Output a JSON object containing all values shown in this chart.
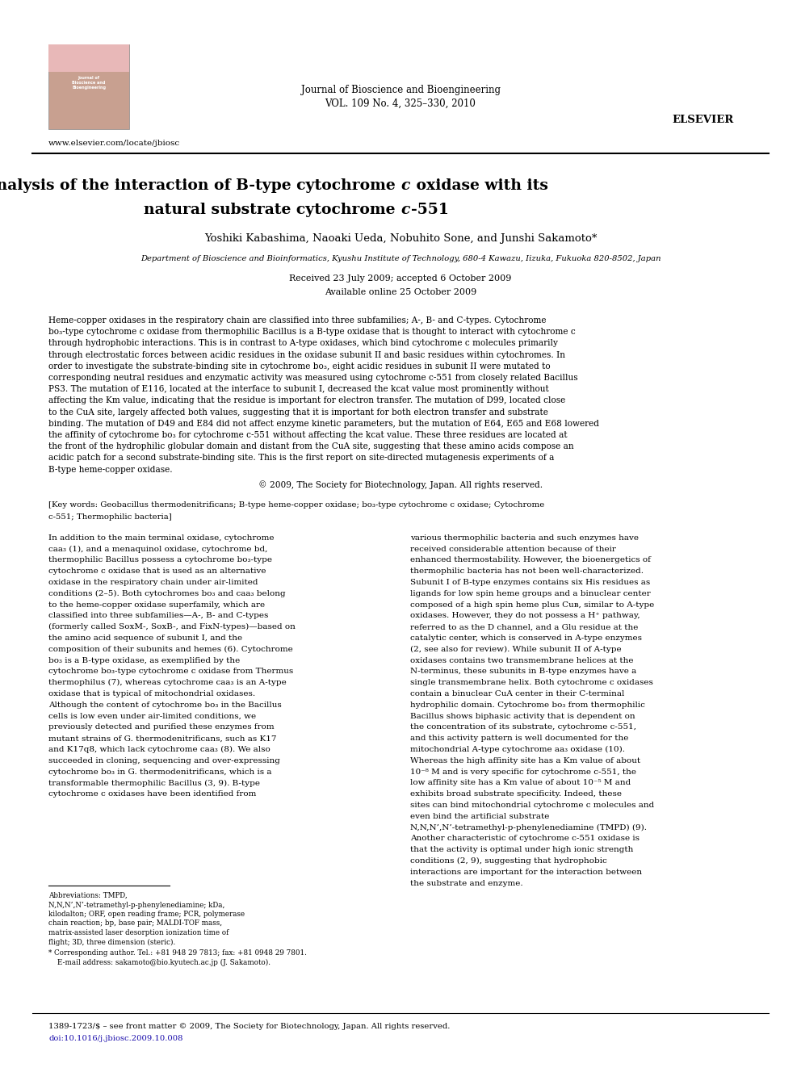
{
  "page_width": 9.92,
  "page_height": 13.23,
  "bg_color": "#ffffff",
  "journal_name": "Journal of Bioscience and Bioengineering",
  "journal_vol": "VOL. 109 No. 4, 325–330, 2010",
  "website": "www.elsevier.com/locate/jbiosc",
  "title_line1_pre": "Mutation analysis of the interaction of B-type cytochrome ",
  "title_line1_c": "c",
  "title_line1_post": " oxidase with its",
  "title_line2_pre": "natural substrate cytochrome ",
  "title_line2_c": "c",
  "title_line2_post": "-551",
  "authors": "Yoshiki Kabashima, Naoaki Ueda, Nobuhito Sone, and Junshi Sakamoto*",
  "affiliation": "Department of Bioscience and Bioinformatics, Kyushu Institute of Technology, 680-4 Kawazu, Iizuka, Fukuoka 820-8502, Japan",
  "received": "Received 23 July 2009; accepted 6 October 2009",
  "available": "Available online 25 October 2009",
  "abstract_text": "Heme-copper oxidases in the respiratory chain are classified into three subfamilies; A-, B- and C-types. Cytochrome bo₃-type cytochrome c oxidase from thermophilic Bacillus is a B-type oxidase that is thought to interact with cytochrome c through hydrophobic interactions. This is in contrast to A-type oxidases, which bind cytochrome c molecules primarily through electrostatic forces between acidic residues in the oxidase subunit II and basic residues within cytochromes. In order to investigate the substrate-binding site in cytochrome bo₃, eight acidic residues in subunit II were mutated to corresponding neutral residues and enzymatic activity was measured using cytochrome c-551 from closely related Bacillus PS3. The mutation of E116, located at the interface to subunit I, decreased the kcat value most prominently without affecting the Km value, indicating that the residue is important for electron transfer. The mutation of D99, located close to the CuA site, largely affected both values, suggesting that it is important for both electron transfer and substrate binding. The mutation of D49 and E84 did not affect enzyme kinetic parameters, but the mutation of E64, E65 and E68 lowered the affinity of cytochrome bo₃ for cytochrome c-551 without affecting the kcat value. These three residues are located at the front of the hydrophilic globular domain and distant from the CuA site, suggesting that these amino acids compose an acidic patch for a second substrate-binding site. This is the first report on site-directed mutagenesis experiments of a B-type heme-copper oxidase.",
  "copyright": "© 2009, The Society for Biotechnology, Japan. All rights reserved.",
  "keywords": "[Key words: Geobacillus thermodenitrificans; B-type heme-copper oxidase; bo₃-type cytochrome c oxidase; Cytochrome c-551; Thermophilic bacteria]",
  "body_col1": "In addition to the main terminal oxidase, cytochrome caa₃ (1), and a menaquinol oxidase, cytochrome bd, thermophilic Bacillus possess a cytochrome bo₃-type cytochrome c oxidase that is used as an alternative oxidase in the respiratory chain under air-limited conditions (2–5). Both cytochromes bo₃ and caa₃ belong to the heme-copper oxidase superfamily, which are classified into three subfamilies—A-, B- and C-types (formerly called SoxM-, SoxB-, and FixN-types)—based on the amino acid sequence of subunit I, and the composition of their subunits and hemes (6). Cytochrome bo₃ is a B-type oxidase, as exemplified by the cytochrome bo₃-type cytochrome c oxidase from Thermus thermophilus (7), whereas cytochrome caa₃ is an A-type oxidase that is typical of mitochondrial oxidases. Although the content of cytochrome bo₃ in the Bacillus cells is low even under air-limited conditions, we previously detected and purified these enzymes from mutant strains of G. thermodenitrificans, such as K17 and K17q8, which lack cytochrome caa₃ (8). We also succeeded in cloning, sequencing and over-expressing cytochrome bo₃ in G. thermodenitrificans, which is a transformable thermophilic Bacillus (3, 9). B-type cytochrome c oxidases have been identified from",
  "body_col2": "various thermophilic bacteria and such enzymes have received considerable attention because of their enhanced thermostability. However, the bioenergetics of thermophilic bacteria has not been well-characterized.\n    Subunit I of B-type enzymes contains six His residues as ligands for low spin heme groups and a binuclear center composed of a high spin heme plus Cuʙ, similar to A-type oxidases. However, they do not possess a H⁺ pathway, referred to as the D channel, and a Glu residue at the catalytic center, which is conserved in A-type enzymes (2, see also for review). While subunit II of A-type oxidases contains two transmembrane helices at the N-terminus, these subunits in B-type enzymes have a single transmembrane helix. Both cytochrome c oxidases contain a binuclear CuA center in their C-terminal hydrophilic domain. Cytochrome bo₃ from thermophilic Bacillus shows biphasic activity that is dependent on the concentration of its substrate, cytochrome c-551, and this activity pattern is well documented for the mitochondrial A-type cytochrome aa₃ oxidase (10). Whereas the high affinity site has a Km value of about 10⁻⁸ M and is very specific for cytochrome c-551, the low affinity site has a Km value of about 10⁻⁵ M and exhibits broad substrate specificity. Indeed, these sites can bind mitochondrial cytochrome c molecules and even bind the artificial substrate N,N,N’,N’-tetramethyl-p-phenylenediamine (TMPD) (9). Another characteristic of cytochrome c-551 oxidase is that the activity is optimal under high ionic strength conditions (2, 9), suggesting that hydrophobic interactions are important for the interaction between the substrate and enzyme.",
  "footnote1": "Abbreviations: TMPD, N,N,N’,N’-tetramethyl-p-phenylenediamine; kDa, kilodalton; ORF, open reading frame; PCR, polymerase chain reaction; bp, base pair; MALDI-TOF mass, matrix-assisted laser desorption ionization time of flight; 3D, three dimension (steric).",
  "footnote2": "* Corresponding author. Tel.: +81 948 29 7813; fax: +81 0948 29 7801.",
  "footnote3": "    E-mail address: sakamoto@bio.kyutech.ac.jp (J. Sakamoto).",
  "bottom_line1": "1389-1723/$ – see front matter © 2009, The Society for Biotechnology, Japan. All rights reserved.",
  "bottom_line2": "doi:10.1016/j.jbiosc.2009.10.008"
}
